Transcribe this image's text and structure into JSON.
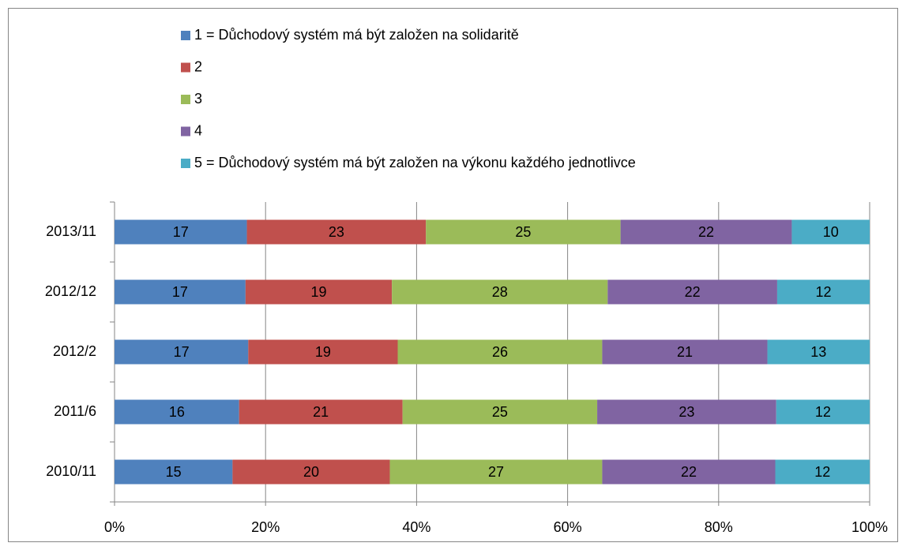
{
  "chart_data": {
    "type": "bar",
    "orientation": "horizontal",
    "stack": "percent",
    "categories": [
      "2013/11",
      "2012/12",
      "2012/2",
      "2011/6",
      "2010/11"
    ],
    "series": [
      {
        "name": "1 = Důchodový systém má být založen na solidaritě",
        "color": "#4f81bd",
        "values": [
          17,
          17,
          17,
          16,
          15
        ]
      },
      {
        "name": "2",
        "color": "#c0504d",
        "values": [
          23,
          19,
          19,
          21,
          20
        ]
      },
      {
        "name": "3",
        "color": "#9bbb59",
        "values": [
          25,
          28,
          26,
          25,
          27
        ]
      },
      {
        "name": "4",
        "color": "#8064a2",
        "values": [
          22,
          22,
          21,
          23,
          22
        ]
      },
      {
        "name": "5 = Důchodový systém má být založen na výkonu každého jednotlivce",
        "color": "#4bacc6",
        "values": [
          10,
          12,
          13,
          12,
          12
        ]
      }
    ],
    "xlim": [
      0,
      100
    ],
    "xticks": [
      {
        "value": 0,
        "label": "0%"
      },
      {
        "value": 20,
        "label": "20%"
      },
      {
        "value": 40,
        "label": "40%"
      },
      {
        "value": 60,
        "label": "60%"
      },
      {
        "value": 80,
        "label": "80%"
      },
      {
        "value": 100,
        "label": "100%"
      }
    ],
    "grid": true,
    "legend": "top"
  }
}
